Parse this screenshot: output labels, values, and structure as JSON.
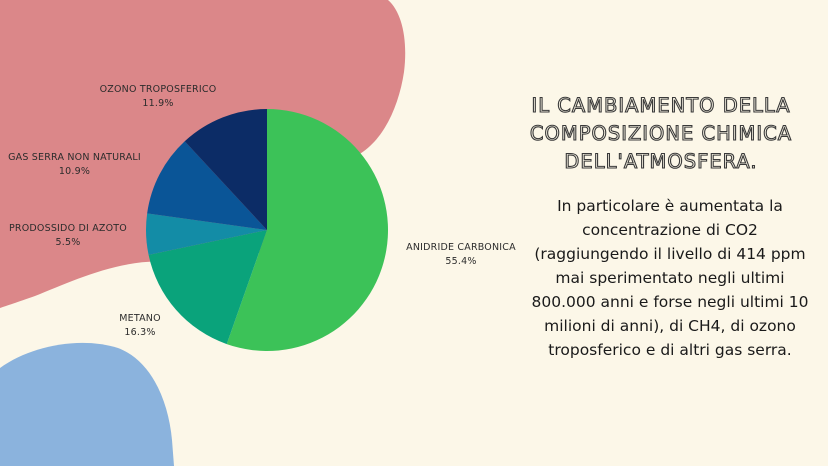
{
  "colors": {
    "background": "#fcf7e8",
    "blob_top": "#db8789",
    "blob_bottom": "#8bb3dd"
  },
  "slide": {
    "title": "Il cambiamento della composizione chimica dell'atmosfera.",
    "body": "In particolare è aumentata la concentrazione di CO2 (raggiungendo il livello di 414 ppm mai sperimentato negli ultimi 800.000 anni e forse negli ultimi 10 milioni di anni), di CH4, di ozono troposferico e di altri gas serra."
  },
  "chart_data": {
    "type": "pie",
    "title": "",
    "slices": [
      {
        "name": "Anidride carbonica",
        "value": 55.4,
        "label": "55.4%",
        "color": "#3cc258"
      },
      {
        "name": "Metano",
        "value": 16.3,
        "label": "16.3%",
        "color": "#0aa37b"
      },
      {
        "name": "Prodossido di azoto",
        "value": 5.5,
        "label": "5.5%",
        "color": "#138ca6"
      },
      {
        "name": "Gas serra non naturali",
        "value": 10.9,
        "label": "10.9%",
        "color": "#0a5597"
      },
      {
        "name": "Ozono troposferico",
        "value": 11.9,
        "label": "11.9%",
        "color": "#0c2c66"
      }
    ],
    "start": "top",
    "direction": "clockwise",
    "legend": "none"
  }
}
